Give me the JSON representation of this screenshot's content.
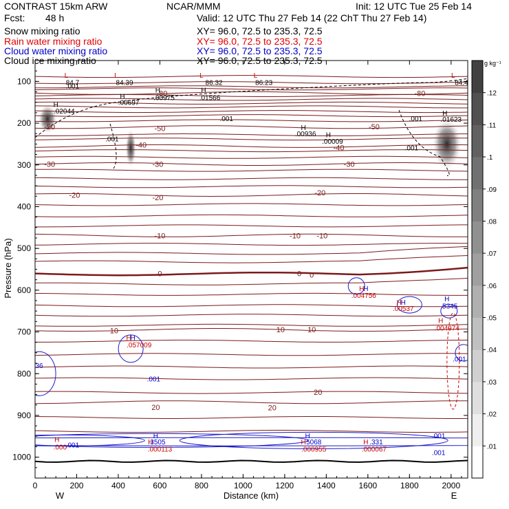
{
  "header": {
    "model": "CONTRAST 15km ARW",
    "center": "NCAR/MMM",
    "init": "Init: 12 UTC Tue 25 Feb 14",
    "fcst_label": "Fcst:",
    "fcst_value": "48 h",
    "valid": "Valid: 12 UTC Thu 27 Feb 14 (22 ChT Thu 27 Feb 14)"
  },
  "fields": [
    {
      "name": "Snow mixing ratio",
      "xy": "XY=  96.0, 72.5 to 235.3, 72.5",
      "color": "#000000"
    },
    {
      "name": "Rain water mixing ratio",
      "xy": "XY=  96.0, 72.5 to 235.3, 72.5",
      "color": "#e00000"
    },
    {
      "name": "Cloud water mixing ratio",
      "xy": "XY=  96.0, 72.5 to 235.3, 72.5",
      "color": "#0000c8"
    },
    {
      "name": "Cloud ice mixing ratio",
      "xy": "XY=  96.0, 72.5 to 235.3, 72.5",
      "color": "#000000"
    }
  ],
  "chart_data": {
    "type": "heatmap",
    "description_free": true,
    "xlabel": "Distance (km)",
    "ylabel": "Pressure (hPa)",
    "xlim": [
      0,
      2080
    ],
    "ylim": [
      1050,
      50
    ],
    "xticks": [
      0,
      200,
      400,
      600,
      800,
      1000,
      1200,
      1400,
      1600,
      1800,
      2000
    ],
    "yticks": [
      100,
      200,
      300,
      400,
      500,
      600,
      700,
      800,
      900,
      1000
    ],
    "x_end_labels": {
      "left": "W",
      "right": "E"
    },
    "colorbar": {
      "unit": "g kg⁻¹",
      "ticks": [
        ".01",
        ".02",
        ".03",
        ".04",
        ".05",
        ".06",
        ".07",
        ".08",
        ".09",
        ".1",
        ".11",
        ".12"
      ],
      "max": 0.13
    },
    "temperature_contours": [
      {
        "value": -80,
        "labels": [
          {
            "x": 610,
            "p": 128
          },
          {
            "x": 1850,
            "p": 128
          }
        ]
      },
      {
        "value": -50,
        "labels": [
          {
            "x": 70,
            "p": 208
          },
          {
            "x": 600,
            "p": 212
          },
          {
            "x": 1630,
            "p": 208
          }
        ]
      },
      {
        "value": -40,
        "labels": [
          {
            "x": 510,
            "p": 252
          },
          {
            "x": 1460,
            "p": 258
          }
        ]
      },
      {
        "value": -30,
        "labels": [
          {
            "x": 70,
            "p": 298
          },
          {
            "x": 590,
            "p": 298
          },
          {
            "x": 1510,
            "p": 298
          }
        ]
      },
      {
        "value": -20,
        "labels": [
          {
            "x": 190,
            "p": 372
          },
          {
            "x": 590,
            "p": 378
          },
          {
            "x": 1370,
            "p": 366
          }
        ]
      },
      {
        "value": -10,
        "labels": [
          {
            "x": 600,
            "p": 469
          },
          {
            "x": 1250,
            "p": 469
          },
          {
            "x": 1380,
            "p": 469
          }
        ]
      },
      {
        "value": 0,
        "labels": [
          {
            "x": 600,
            "p": 560
          },
          {
            "x": 1270,
            "p": 560
          },
          {
            "x": 1330,
            "p": 563
          }
        ]
      },
      {
        "value": 10,
        "labels": [
          {
            "x": 380,
            "p": 697
          },
          {
            "x": 1180,
            "p": 694
          },
          {
            "x": 1330,
            "p": 694
          }
        ]
      },
      {
        "value": 20,
        "labels": [
          {
            "x": 580,
            "p": 880
          },
          {
            "x": 1140,
            "p": 881
          },
          {
            "x": 1360,
            "p": 844
          }
        ]
      }
    ],
    "other_contour_pressures": [
      88,
      103,
      113,
      118,
      134,
      143,
      152,
      161,
      172,
      182,
      194,
      228,
      238,
      266,
      282,
      313,
      333,
      352,
      395,
      422,
      446,
      490,
      512,
      532,
      585,
      610,
      637,
      660,
      684,
      722,
      754,
      784,
      812,
      845,
      905,
      938
    ],
    "extrema_labels": [
      {
        "text": "L",
        "x": 150,
        "p": 85,
        "color": "#c80000"
      },
      {
        "text": "84.7",
        "x": 180,
        "p": 102,
        "color": "#000000"
      },
      {
        "text": ".001",
        "x": 180,
        "p": 110,
        "color": "#000000"
      },
      {
        "text": "L",
        "x": 390,
        "p": 85,
        "color": "#c80000"
      },
      {
        "text": "84.39",
        "x": 430,
        "p": 102,
        "color": "#000000"
      },
      {
        "text": "L",
        "x": 800,
        "p": 85,
        "color": "#c80000"
      },
      {
        "text": "86.32",
        "x": 860,
        "p": 102,
        "color": "#000000"
      },
      {
        "text": "L",
        "x": 1060,
        "p": 85,
        "color": "#c80000"
      },
      {
        "text": "86.23",
        "x": 1100,
        "p": 102,
        "color": "#000000"
      },
      {
        "text": "L",
        "x": 2010,
        "p": 85,
        "color": "#c80000"
      },
      {
        "text": "84.4",
        "x": 2050,
        "p": 102,
        "color": "#000000"
      },
      {
        "text": "H",
        "x": 100,
        "p": 155,
        "color": "#000000"
      },
      {
        "text": ".02044",
        "x": 140,
        "p": 170,
        "color": "#000000"
      },
      {
        "text": "H",
        "x": 420,
        "p": 135,
        "color": "#000000"
      },
      {
        "text": ".00697",
        "x": 450,
        "p": 150,
        "color": "#000000"
      },
      {
        "text": "H",
        "x": 590,
        "p": 120,
        "color": "#000000"
      },
      {
        "text": ".00975",
        "x": 620,
        "p": 138,
        "color": "#000000"
      },
      {
        "text": "H",
        "x": 810,
        "p": 120,
        "color": "#000000"
      },
      {
        "text": ".01566",
        "x": 840,
        "p": 138,
        "color": "#000000"
      },
      {
        "text": ".001",
        "x": 920,
        "p": 188,
        "color": "#000000"
      },
      {
        "text": ".001",
        "x": 370,
        "p": 237,
        "color": "#000000"
      },
      {
        "text": "H",
        "x": 1290,
        "p": 210,
        "color": "#000000"
      },
      {
        "text": ".00936",
        "x": 1300,
        "p": 225,
        "color": "#000000"
      },
      {
        "text": "H",
        "x": 1410,
        "p": 227,
        "color": "#000000"
      },
      {
        "text": ".00009",
        "x": 1430,
        "p": 243,
        "color": "#000000"
      },
      {
        "text": "H",
        "x": 1970,
        "p": 175,
        "color": "#000000"
      },
      {
        "text": ".01623",
        "x": 2000,
        "p": 190,
        "color": "#000000"
      },
      {
        "text": ".001",
        "x": 1830,
        "p": 188,
        "color": "#000000"
      },
      {
        "text": ".001",
        "x": 1810,
        "p": 258,
        "color": "#000000"
      },
      {
        "text": "H",
        "x": 1570,
        "p": 595,
        "color": "#c80000"
      },
      {
        "text": "H",
        "x": 1590,
        "p": 595,
        "color": "#0000c8"
      },
      {
        "text": ".004756",
        "x": 1580,
        "p": 612,
        "color": "#c80000"
      },
      {
        "text": "H",
        "x": 1770,
        "p": 628,
        "color": "#0000c8"
      },
      {
        "text": "H",
        "x": 1750,
        "p": 628,
        "color": "#c80000"
      },
      {
        "text": ".00537",
        "x": 1770,
        "p": 643,
        "color": "#c80000"
      },
      {
        "text": "H",
        "x": 1980,
        "p": 620,
        "color": "#0000c8"
      },
      {
        "text": ".5345",
        "x": 1990,
        "p": 637,
        "color": "#0000c8"
      },
      {
        "text": "H",
        "x": 1950,
        "p": 672,
        "color": "#c80000"
      },
      {
        "text": ".004974",
        "x": 1980,
        "p": 690,
        "color": "#c80000"
      },
      {
        "text": ".001",
        "x": 2040,
        "p": 764,
        "color": "#0000c8"
      },
      {
        "text": "H",
        "x": 450,
        "p": 713,
        "color": "#c80000"
      },
      {
        "text": "H",
        "x": 470,
        "p": 713,
        "color": "#0000c8"
      },
      {
        "text": ".057009",
        "x": 500,
        "p": 730,
        "color": "#c80000"
      },
      {
        "text": ".001",
        "x": 570,
        "p": 812,
        "color": "#0000c8"
      },
      {
        "text": "36",
        "x": 20,
        "p": 780,
        "color": "#0000c8"
      },
      {
        "text": "H",
        "x": 105,
        "p": 957,
        "color": "#c80000"
      },
      {
        "text": ".000",
        "x": 120,
        "p": 975,
        "color": "#c80000"
      },
      {
        "text": ".001",
        "x": 180,
        "p": 970,
        "color": "#0000c8"
      },
      {
        "text": "H",
        "x": 580,
        "p": 948,
        "color": "#0000c8"
      },
      {
        "text": "H",
        "x": 555,
        "p": 963,
        "color": "#c80000"
      },
      {
        "text": "3505",
        "x": 590,
        "p": 963,
        "color": "#0000c8"
      },
      {
        "text": ".000113",
        "x": 600,
        "p": 980,
        "color": "#c80000"
      },
      {
        "text": "H",
        "x": 1310,
        "p": 948,
        "color": "#0000c8"
      },
      {
        "text": "H",
        "x": 1290,
        "p": 963,
        "color": "#c80000"
      },
      {
        "text": "5068",
        "x": 1340,
        "p": 963,
        "color": "#0000c8"
      },
      {
        "text": ".000955",
        "x": 1340,
        "p": 980,
        "color": "#c80000"
      },
      {
        "text": "H",
        "x": 1590,
        "p": 963,
        "color": "#c80000"
      },
      {
        "text": ".331",
        "x": 1640,
        "p": 963,
        "color": "#0000c8"
      },
      {
        "text": ".000067",
        "x": 1630,
        "p": 980,
        "color": "#c80000"
      },
      {
        "text": ".001",
        "x": 1940,
        "p": 948,
        "color": "#0000c8"
      },
      {
        "text": ".001",
        "x": 1940,
        "p": 988,
        "color": "#0000c8"
      }
    ]
  }
}
